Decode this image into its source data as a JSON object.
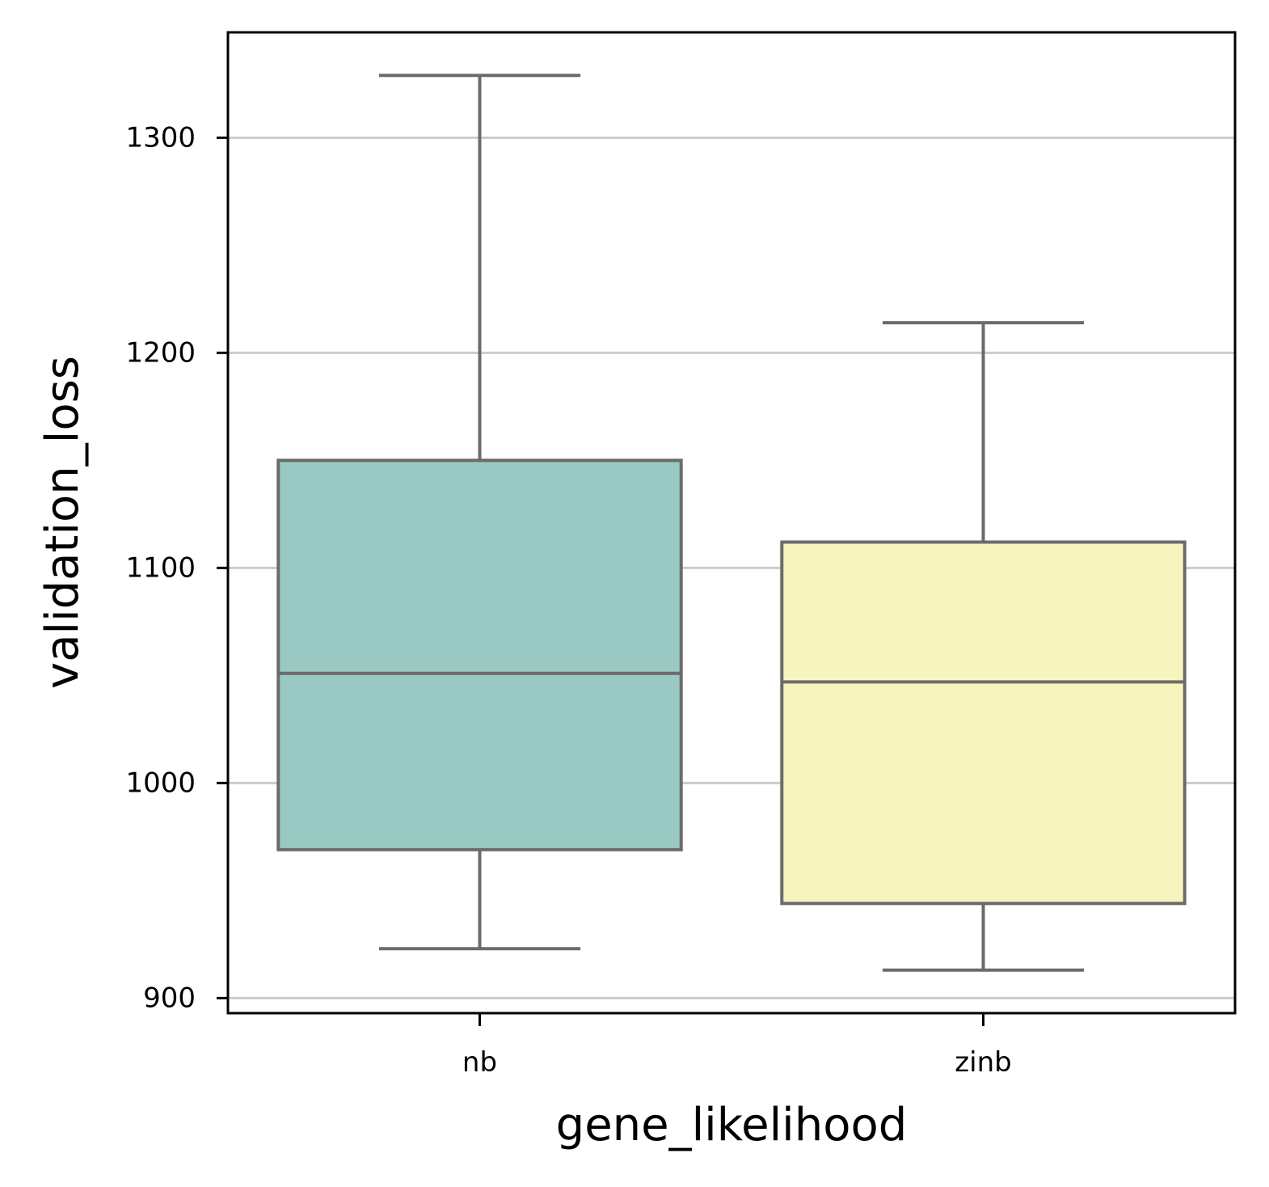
{
  "chart_data": {
    "type": "box",
    "xlabel": "gene_likelihood",
    "ylabel": "validation_loss",
    "ylim": [
      893,
      1349
    ],
    "yticks": [
      900,
      1000,
      1100,
      1200,
      1300
    ],
    "grid": "horizontal",
    "categories": [
      "nb",
      "zinb"
    ],
    "boxes": [
      {
        "category": "nb",
        "whisker_low": 923,
        "q1": 969,
        "median": 1051,
        "q3": 1150,
        "whisker_high": 1329,
        "color": "#99c9c2"
      },
      {
        "category": "zinb",
        "whisker_low": 913,
        "q1": 944,
        "median": 1047,
        "q3": 1112,
        "whisker_high": 1214,
        "color": "#f7f5bd"
      }
    ]
  },
  "colors": {
    "box_edge": "#6b6b6b",
    "grid": "#cccccc",
    "axes": "#000000"
  }
}
